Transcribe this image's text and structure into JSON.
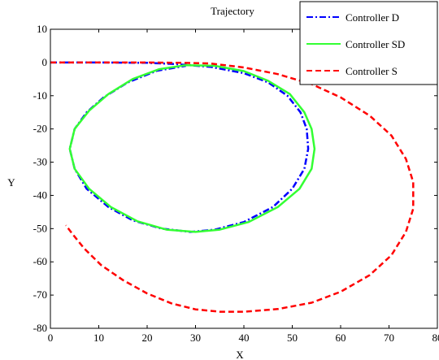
{
  "chart_data": {
    "type": "line",
    "title": "Trajectory",
    "xlabel": "X",
    "ylabel": "Y",
    "xlim": [
      0,
      80
    ],
    "ylim": [
      -80,
      10
    ],
    "xticks": [
      0,
      10,
      20,
      30,
      40,
      50,
      60,
      70,
      80
    ],
    "yticks": [
      10,
      0,
      -10,
      -20,
      -30,
      -40,
      -50,
      -60,
      -70,
      -80
    ],
    "grid": false,
    "legend_position": "top-right",
    "series": [
      {
        "name": "Controller D",
        "color": "#0000ff",
        "style": "dash-dot",
        "points": [
          [
            0,
            0
          ],
          [
            10,
            0
          ],
          [
            20,
            -0.1
          ],
          [
            26,
            -0.5
          ],
          [
            33,
            -1.3
          ],
          [
            40,
            -3.2
          ],
          [
            45,
            -6
          ],
          [
            49,
            -10
          ],
          [
            51.7,
            -15
          ],
          [
            53,
            -20
          ],
          [
            53.3,
            -26
          ],
          [
            52.5,
            -32
          ],
          [
            50,
            -38
          ],
          [
            46,
            -43.5
          ],
          [
            40,
            -48
          ],
          [
            34,
            -50.3
          ],
          [
            29,
            -51
          ],
          [
            23,
            -50
          ],
          [
            17,
            -47.5
          ],
          [
            12,
            -43.5
          ],
          [
            7.5,
            -38
          ],
          [
            5,
            -32
          ],
          [
            4,
            -26
          ],
          [
            5,
            -20
          ],
          [
            7.5,
            -15
          ],
          [
            11,
            -10.5
          ],
          [
            16,
            -6
          ],
          [
            22,
            -2.5
          ],
          [
            28,
            -1
          ]
        ]
      },
      {
        "name": "Controller SD",
        "color": "#33ff33",
        "style": "solid",
        "points": [
          [
            28,
            -0.8
          ],
          [
            34,
            -1
          ],
          [
            40,
            -2.6
          ],
          [
            45,
            -5.5
          ],
          [
            49.5,
            -9.5
          ],
          [
            52.5,
            -15
          ],
          [
            54,
            -20
          ],
          [
            54.6,
            -26
          ],
          [
            54,
            -32
          ],
          [
            51.5,
            -38
          ],
          [
            47,
            -43.5
          ],
          [
            41,
            -48
          ],
          [
            35,
            -50.3
          ],
          [
            30,
            -51
          ],
          [
            24,
            -50.3
          ],
          [
            18,
            -47.8
          ],
          [
            12.5,
            -43.5
          ],
          [
            8,
            -38
          ],
          [
            5,
            -32
          ],
          [
            4,
            -26
          ],
          [
            5,
            -20
          ],
          [
            8,
            -14.5
          ],
          [
            12,
            -9.5
          ],
          [
            17,
            -5
          ],
          [
            22.5,
            -2
          ],
          [
            28,
            -0.8
          ]
        ]
      },
      {
        "name": "Controller S",
        "color": "#ff0000",
        "style": "dash",
        "points": [
          [
            0,
            0
          ],
          [
            10,
            0
          ],
          [
            20,
            0
          ],
          [
            27,
            -0.1
          ],
          [
            33,
            -0.3
          ],
          [
            40,
            -1.5
          ],
          [
            47,
            -3.5
          ],
          [
            54,
            -6.5
          ],
          [
            60,
            -10.5
          ],
          [
            66,
            -16
          ],
          [
            70.5,
            -22
          ],
          [
            73.5,
            -29
          ],
          [
            75,
            -36
          ],
          [
            75,
            -44
          ],
          [
            73.5,
            -51
          ],
          [
            70.5,
            -58
          ],
          [
            66,
            -64
          ],
          [
            60,
            -69
          ],
          [
            54,
            -72.3
          ],
          [
            47,
            -74.2
          ],
          [
            40,
            -75
          ],
          [
            35,
            -75
          ],
          [
            30,
            -74.3
          ],
          [
            25,
            -72.5
          ],
          [
            20,
            -69.5
          ],
          [
            15,
            -65.5
          ],
          [
            10.5,
            -61
          ],
          [
            7,
            -56
          ],
          [
            4.5,
            -51.5
          ],
          [
            3.2,
            -49
          ]
        ]
      }
    ]
  }
}
